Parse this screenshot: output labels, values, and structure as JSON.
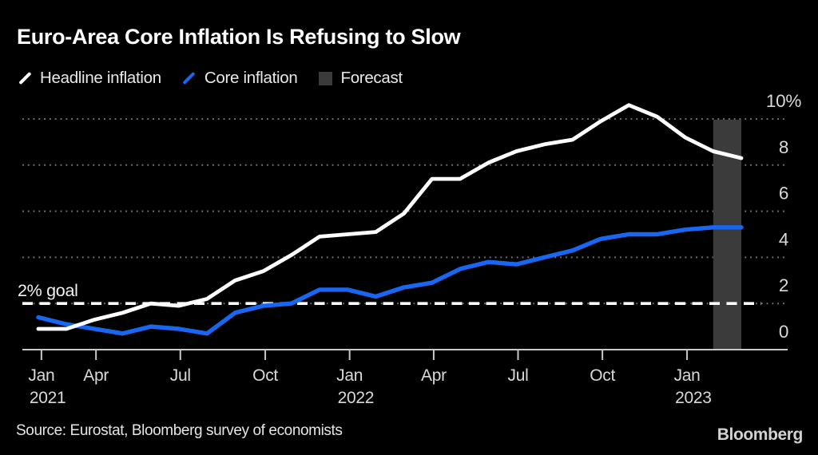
{
  "title": "Euro-Area Core Inflation Is Refusing to Slow",
  "legend": [
    {
      "label": "Headline inflation",
      "marker": "slash",
      "color": "#ffffff"
    },
    {
      "label": "Core inflation",
      "marker": "slash",
      "color": "#1967f0"
    },
    {
      "label": "Forecast",
      "marker": "square",
      "color": "#3b3b3b"
    }
  ],
  "source": "Source: Eurostat, Bloomberg survey of economists",
  "logo": "Bloomberg",
  "chart_data": {
    "type": "line",
    "title": "Euro-Area Core Inflation Is Refusing to Slow",
    "categories": [
      "Jan 2021",
      "Feb 2021",
      "Mar 2021",
      "Apr 2021",
      "May 2021",
      "Jun 2021",
      "Jul 2021",
      "Aug 2021",
      "Sep 2021",
      "Oct 2021",
      "Nov 2021",
      "Dec 2021",
      "Jan 2022",
      "Feb 2022",
      "Mar 2022",
      "Apr 2022",
      "May 2022",
      "Jun 2022",
      "Jul 2022",
      "Aug 2022",
      "Sep 2022",
      "Oct 2022",
      "Nov 2022",
      "Dec 2022",
      "Jan 2023",
      "Feb 2023"
    ],
    "series": [
      {
        "name": "Headline inflation",
        "color": "#ffffff",
        "values": [
          0.9,
          0.9,
          1.3,
          1.6,
          2.0,
          1.9,
          2.2,
          3.0,
          3.4,
          4.1,
          4.9,
          5.0,
          5.1,
          5.9,
          7.4,
          7.4,
          8.1,
          8.6,
          8.9,
          9.1,
          9.9,
          10.6,
          10.1,
          9.2,
          8.6,
          8.3
        ]
      },
      {
        "name": "Core inflation",
        "color": "#1967f0",
        "values": [
          1.4,
          1.1,
          0.9,
          0.7,
          1.0,
          0.9,
          0.7,
          1.6,
          1.9,
          2.0,
          2.6,
          2.6,
          2.3,
          2.7,
          2.9,
          3.5,
          3.8,
          3.7,
          4.0,
          4.3,
          4.8,
          5.0,
          5.0,
          5.2,
          5.3,
          5.3
        ]
      }
    ],
    "forecast_band": {
      "label": "Forecast",
      "start_index": 24,
      "end_index": 25,
      "color": "#3b3b3b"
    },
    "goal_line": {
      "value": 2,
      "label": "2% goal",
      "style": "dashed",
      "color": "#ffffff"
    },
    "ylim": [
      0,
      10
    ],
    "yticks": [
      0,
      2,
      4,
      6,
      8,
      10
    ],
    "ytick_labels": [
      "0",
      "2",
      "4",
      "6",
      "8",
      "10%"
    ],
    "xticks": [
      {
        "label": "Jan",
        "year": "2021"
      },
      {
        "label": "Apr"
      },
      {
        "label": "Jul"
      },
      {
        "label": "Oct"
      },
      {
        "label": "Jan",
        "year": "2022"
      },
      {
        "label": "Apr"
      },
      {
        "label": "Jul"
      },
      {
        "label": "Oct"
      },
      {
        "label": "Jan",
        "year": "2023"
      }
    ],
    "grid": "horizontal-dotted",
    "legend_position": "top-left",
    "axis_color": "#c9c9c9",
    "grid_color": "#757575",
    "label_color": "#d9d9d9"
  }
}
